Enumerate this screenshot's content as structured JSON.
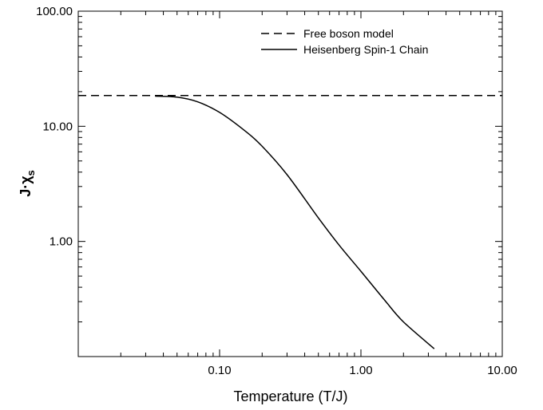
{
  "chart_data": {
    "type": "line",
    "title": "",
    "xlabel": "Temperature (T/J)",
    "ylabel": {
      "main": "J·χ",
      "sub": "s"
    },
    "x_scale": "log",
    "y_scale": "log",
    "xlim": [
      0.01,
      10
    ],
    "ylim": [
      0.1,
      100
    ],
    "x_ticks": [
      {
        "value": 0.1,
        "label": "0.10"
      },
      {
        "value": 1,
        "label": "1.00"
      },
      {
        "value": 10,
        "label": "10.00"
      }
    ],
    "y_ticks": [
      {
        "value": 1,
        "label": "1.00"
      },
      {
        "value": 10,
        "label": "10.00"
      },
      {
        "value": 100,
        "label": "100.00"
      }
    ],
    "grid": false,
    "legend_position": "top-right",
    "series": [
      {
        "name": "Free boson model",
        "style": "dashed",
        "x": [
          0.01,
          10
        ],
        "y": [
          18.5,
          18.5
        ]
      },
      {
        "name": "Heisenberg Spin-1 Chain",
        "style": "solid",
        "x": [
          0.035,
          0.05,
          0.07,
          0.1,
          0.15,
          0.2,
          0.3,
          0.5,
          0.7,
          1.0,
          1.5,
          2.0,
          3.3
        ],
        "y": [
          18.3,
          17.9,
          16.3,
          13.2,
          9.2,
          6.7,
          3.8,
          1.6,
          0.93,
          0.55,
          0.3,
          0.2,
          0.117
        ]
      }
    ]
  }
}
